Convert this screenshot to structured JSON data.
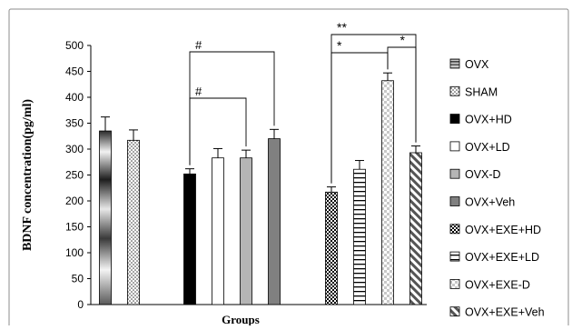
{
  "chart_data": {
    "type": "bar",
    "title": "",
    "xlabel": "Groups",
    "ylabel": "BDNF concentration(pg/ml)",
    "ylim": [
      0,
      500
    ],
    "yticks": [
      "0",
      "50",
      "100",
      "150",
      "200",
      "250",
      "300",
      "350",
      "400",
      "450",
      "500"
    ],
    "grid": false,
    "legend_position": "right",
    "series": [
      {
        "name": "OVX",
        "value": 335,
        "error": 27,
        "pattern": "gradient-gray"
      },
      {
        "name": "SHAM",
        "value": 317,
        "error": 20,
        "pattern": "dots"
      },
      {
        "name": "OVX+HD",
        "value": 252,
        "error": 10,
        "pattern": "solid-black"
      },
      {
        "name": "OVX+LD",
        "value": 283,
        "error": 18,
        "pattern": "white"
      },
      {
        "name": "OVX-D",
        "value": 283,
        "error": 15,
        "pattern": "light-gray"
      },
      {
        "name": "OVX+Veh",
        "value": 320,
        "error": 18,
        "pattern": "dark-gray"
      },
      {
        "name": "OVX+EXE+HD",
        "value": 217,
        "error": 10,
        "pattern": "checker"
      },
      {
        "name": "OVX+EXE+LD",
        "value": 261,
        "error": 17,
        "pattern": "horizontal-lines"
      },
      {
        "name": "OVX+EXE-D",
        "value": 432,
        "error": 15,
        "pattern": "light-checker"
      },
      {
        "name": "OVX+EXE+Veh",
        "value": 293,
        "error": 13,
        "pattern": "diagonal"
      }
    ],
    "annotations": [
      {
        "label": "#",
        "from": "OVX+HD",
        "to": "OVX+Veh"
      },
      {
        "label": "#",
        "from": "OVX+HD",
        "to": "OVX-D"
      },
      {
        "label": "**",
        "from": "OVX+EXE+HD",
        "to": "OVX+EXE+Veh"
      },
      {
        "label": "*",
        "from": "OVX+EXE+HD",
        "to": "OVX+EXE-D"
      },
      {
        "label": "*",
        "from": "OVX+EXE-D",
        "to": "OVX+EXE+Veh"
      }
    ]
  }
}
